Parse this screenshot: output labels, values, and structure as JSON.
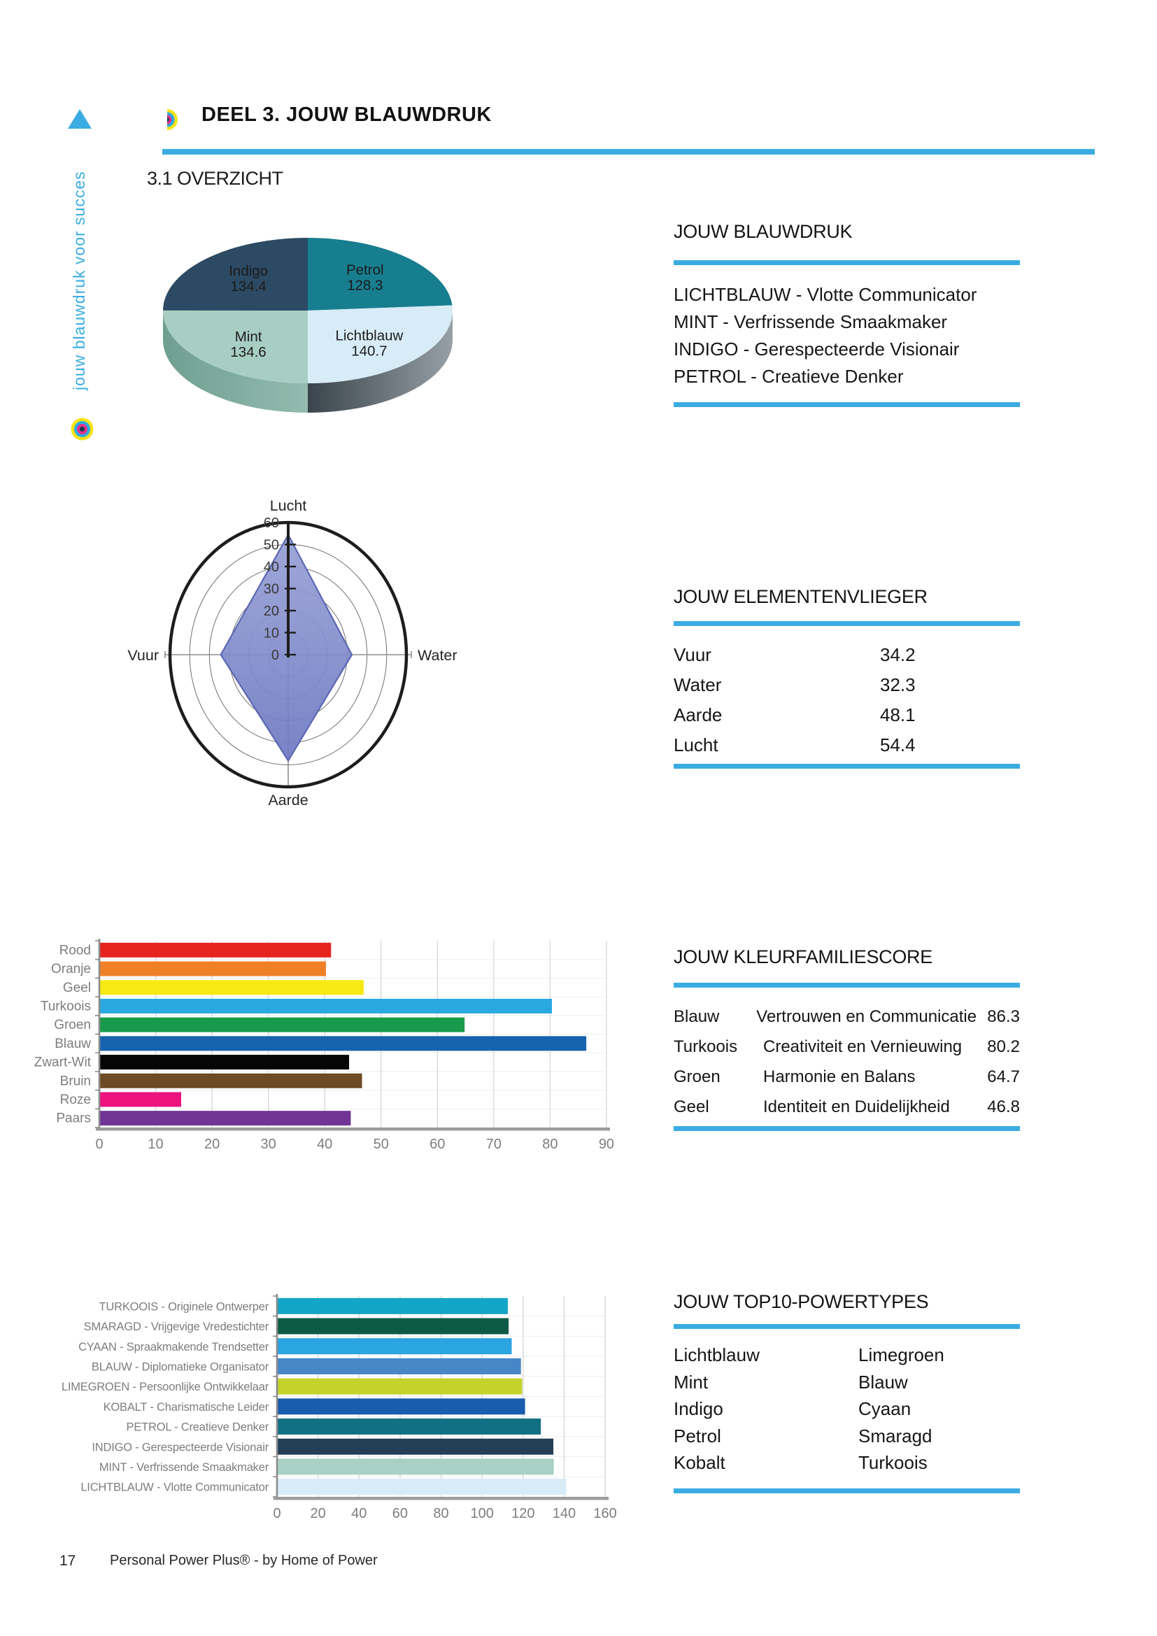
{
  "colors": {
    "accent": "#3BACE2",
    "text": "#161616",
    "axis_gray": "#8C8C8C",
    "label_gray": "#7D7D7D"
  },
  "header": {
    "part_title": "DEEL 3. JOUW BLAUWDRUK",
    "section_title": "3.1 OVERZICHT"
  },
  "sidebar": {
    "vertical_text": "jouw blauwdruk voor succes"
  },
  "footer": {
    "page_number": "17",
    "text": "Personal Power Plus® - by Home of Power"
  },
  "icons": [
    "triangle-icon",
    "bullseye-logo-icon",
    "half-bullseye-logo-icon"
  ],
  "panels": {
    "blauwdruk": {
      "title": "JOUW BLAUWDRUK",
      "items": [
        "LICHTBLAUW - Vlotte Communicator",
        "MINT - Verfrissende Smaakmaker",
        "INDIGO - Gerespecteerde Visionair",
        "PETROL - Creatieve Denker"
      ]
    },
    "elementen": {
      "title": "JOUW ELEMENTENVLIEGER",
      "rows": [
        {
          "label": "Vuur",
          "value": "34.2"
        },
        {
          "label": "Water",
          "value": "32.3"
        },
        {
          "label": "Aarde",
          "value": "48.1"
        },
        {
          "label": "Lucht",
          "value": "54.4"
        }
      ]
    },
    "kleurfamilie": {
      "title": "JOUW KLEURFAMILIESCORE",
      "rows": [
        {
          "label": "Blauw",
          "desc": "Vertrouwen en Communicatie",
          "value": "86.3"
        },
        {
          "label": "Turkoois",
          "desc": "Creativiteit en Vernieuwing",
          "value": "80.2"
        },
        {
          "label": "Groen",
          "desc": "Harmonie en Balans",
          "value": "64.7"
        },
        {
          "label": "Geel",
          "desc": "Identiteit en Duidelijkheid",
          "value": "46.8"
        }
      ]
    },
    "top10": {
      "title": "JOUW TOP10-POWERTYPES",
      "column1": [
        "Lichtblauw",
        "Mint",
        "Indigo",
        "Petrol",
        "Kobalt"
      ],
      "column2": [
        "Limegroen",
        "Blauw",
        "Cyaan",
        "Smaragd",
        "Turkoois"
      ]
    }
  },
  "chart_data": [
    {
      "id": "pie",
      "type": "pie",
      "title": "",
      "style": "3d",
      "start": "top",
      "direction": "clockwise",
      "slices": [
        {
          "label": "Petrol",
          "value": 128.3,
          "color": "#177E8F",
          "side_colors": [
            "#0E5561",
            "#0E5561"
          ]
        },
        {
          "label": "Lichtblauw",
          "value": 140.7,
          "color": "#D8ECF7",
          "side_colors": [
            "#3A444C",
            "#97A0A5"
          ]
        },
        {
          "label": "Mint",
          "value": 134.6,
          "color": "#A8CEC3",
          "side_colors": [
            "#6F9F91",
            "#93BBAF"
          ]
        },
        {
          "label": "Indigo",
          "value": 134.4,
          "color": "#2C4A63",
          "side_colors": [
            "#1B2E3E",
            "#1B2E3E"
          ]
        }
      ]
    },
    {
      "id": "radar",
      "type": "radar",
      "title": "",
      "axes": [
        "Lucht",
        "Water",
        "Aarde",
        "Vuur"
      ],
      "values": [
        54.4,
        32.3,
        48.1,
        34.2
      ],
      "rmax": 60,
      "ring_step": 10,
      "tick_labels": [
        "0",
        "10",
        "20",
        "30",
        "40",
        "50",
        "60"
      ],
      "fill_colors": [
        "#98A1D6",
        "#6F7AC2"
      ],
      "stroke_color": "#5C67B3"
    },
    {
      "id": "kleurfamilie",
      "type": "bar",
      "orientation": "horizontal",
      "title": "",
      "categories": [
        "Rood",
        "Oranje",
        "Geel",
        "Turkoois",
        "Groen",
        "Blauw",
        "Zwart-Wit",
        "Bruin",
        "Roze",
        "Paars"
      ],
      "values": [
        41.0,
        40.1,
        46.8,
        80.2,
        64.7,
        86.3,
        44.2,
        46.5,
        14.4,
        44.5
      ],
      "colors": [
        "#E5231F",
        "#F08026",
        "#F7E914",
        "#2AA9E1",
        "#179A4B",
        "#1563AE",
        "#060606",
        "#6C4B25",
        "#EE127F",
        "#703594"
      ],
      "xlim": [
        0,
        90
      ],
      "xtick_step": 10,
      "grid": true
    },
    {
      "id": "powertypes",
      "type": "bar",
      "orientation": "horizontal",
      "title": "",
      "categories": [
        "TURKOOIS - Originele Ontwerper",
        "SMARAGD - Vrijgevige Vredestichter",
        "CYAAN - Spraakmakende Trendsetter",
        "BLAUW - Diplomatieke Organisator",
        "LIMEGROEN - Persoonlijke Ontwikkelaar",
        "KOBALT - Charismatische Leider",
        "PETROL - Creatieve Denker",
        "INDIGO - Gerespecteerde Visionair",
        "MINT - Verfrissende Smaakmaker",
        "LICHTBLAUW - Vlotte Communicator"
      ],
      "values": [
        112.2,
        112.6,
        114.1,
        118.6,
        119.2,
        120.6,
        128.3,
        134.4,
        134.6,
        140.7
      ],
      "colors": [
        "#13A5C5",
        "#0D5B45",
        "#2BA4E2",
        "#4787C8",
        "#C4D22C",
        "#1A5CAD",
        "#127084",
        "#233F58",
        "#A9D0C5",
        "#D8ECF8"
      ],
      "xlim": [
        0,
        160
      ],
      "xtick_step": 20,
      "grid": true
    }
  ]
}
